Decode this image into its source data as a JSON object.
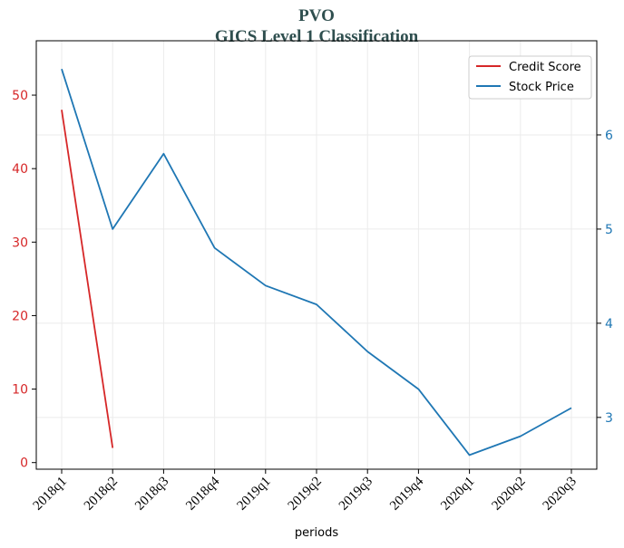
{
  "chart_data": {
    "type": "line",
    "title": "PVO",
    "subtitle": "GICS Level 1 Classification",
    "xlabel": "periods",
    "categories": [
      "2018q1",
      "2018q2",
      "2018q3",
      "2018q4",
      "2019q1",
      "2019q2",
      "2019q3",
      "2019q4",
      "2020q1",
      "2020q2",
      "2020q3"
    ],
    "y_left": {
      "ylim": [
        -0.9,
        57.4
      ],
      "ticks": [
        0,
        10,
        20,
        30,
        40,
        50
      ],
      "color": "#d62728"
    },
    "y_right": {
      "ylim": [
        2.45,
        7.0
      ],
      "ticks": [
        3,
        4,
        5,
        6
      ],
      "color": "#1f77b4"
    },
    "series": [
      {
        "name": "Credit Score",
        "axis": "left",
        "color": "#d62728",
        "values": [
          48,
          2,
          null,
          null,
          null,
          null,
          null,
          null,
          null,
          null,
          null
        ]
      },
      {
        "name": "Stock Price",
        "axis": "right",
        "color": "#1f77b4",
        "values": [
          6.7,
          5.0,
          5.8,
          4.8,
          4.4,
          4.2,
          3.7,
          3.3,
          2.6,
          2.8,
          3.1
        ]
      }
    ],
    "grid": true,
    "legend": "top-right"
  }
}
